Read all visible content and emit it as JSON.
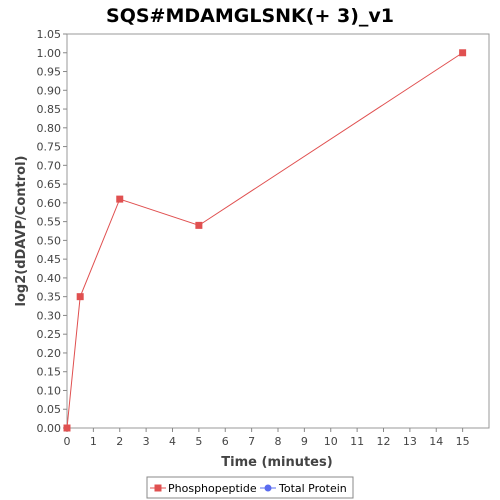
{
  "chart_data": {
    "type": "line",
    "title": "SQS#MDAMGLSNK(+ 3)_v1",
    "xlabel": "Time (minutes)",
    "ylabel": "log2(dDAVP/Control)",
    "xlim": [
      0,
      16
    ],
    "ylim": [
      0,
      1.05
    ],
    "x_ticks": [
      0,
      1,
      2,
      3,
      4,
      5,
      6,
      7,
      8,
      9,
      10,
      11,
      12,
      13,
      14,
      15
    ],
    "y_ticks": [
      0.0,
      0.05,
      0.1,
      0.15,
      0.2,
      0.25,
      0.3,
      0.35,
      0.4,
      0.45,
      0.5,
      0.55,
      0.6,
      0.65,
      0.7,
      0.75,
      0.8,
      0.85,
      0.9,
      0.95,
      1.0,
      1.05
    ],
    "grid": false,
    "legend_position": "bottom",
    "series": [
      {
        "name": "Phosphopeptide",
        "color": "#e05050",
        "marker": "square",
        "x": [
          0,
          0.5,
          2,
          5,
          15
        ],
        "y": [
          0.0,
          0.35,
          0.61,
          0.54,
          1.0
        ]
      },
      {
        "name": "Total Protein",
        "color": "#5a6cf0",
        "marker": "circle",
        "x": [],
        "y": []
      }
    ]
  }
}
